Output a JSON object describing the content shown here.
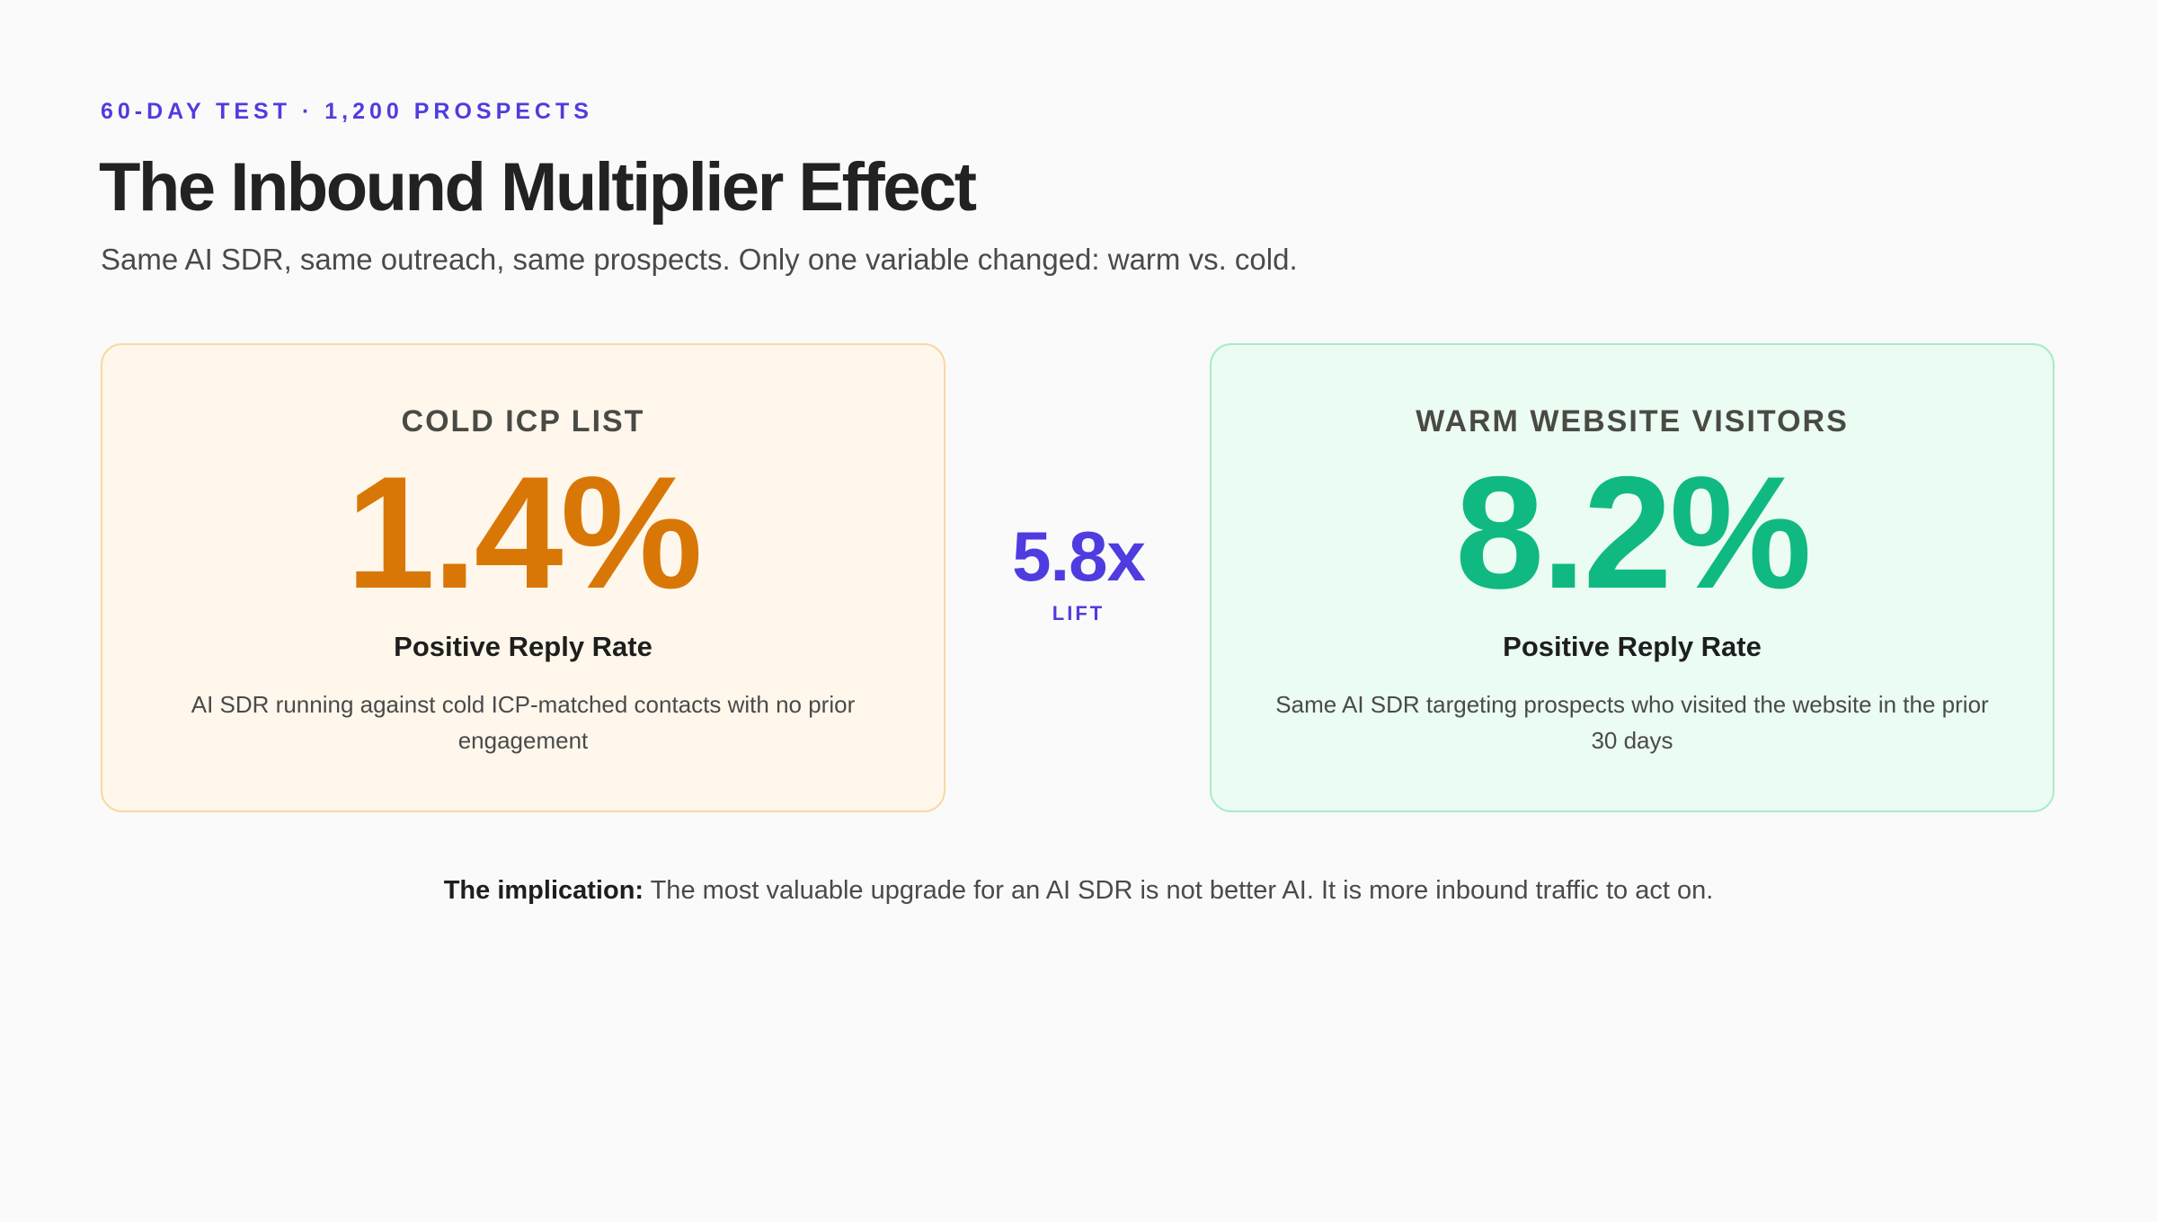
{
  "header": {
    "eyebrow": "60-DAY TEST · 1,200 PROSPECTS",
    "title": "The Inbound Multiplier Effect",
    "subtitle": "Same AI SDR, same outreach, same prospects. Only one variable changed: warm vs. cold."
  },
  "cards": {
    "cold": {
      "heading": "COLD ICP LIST",
      "value": "1.4%",
      "metric": "Positive Reply Rate",
      "description": "AI SDR running against cold ICP-matched contacts with no prior engagement",
      "accent_color": "#d97706"
    },
    "warm": {
      "heading": "WARM WEBSITE VISITORS",
      "value": "8.2%",
      "metric": "Positive Reply Rate",
      "description": "Same AI SDR targeting prospects who visited the website in the prior 30 days",
      "accent_color": "#10b981"
    }
  },
  "lift": {
    "value": "5.8x",
    "label": "LIFT",
    "color": "#4f3ce0"
  },
  "footer": {
    "lead": "The implication:",
    "text": " The most valuable upgrade for an AI SDR is not better AI. It is more inbound traffic to act on."
  }
}
